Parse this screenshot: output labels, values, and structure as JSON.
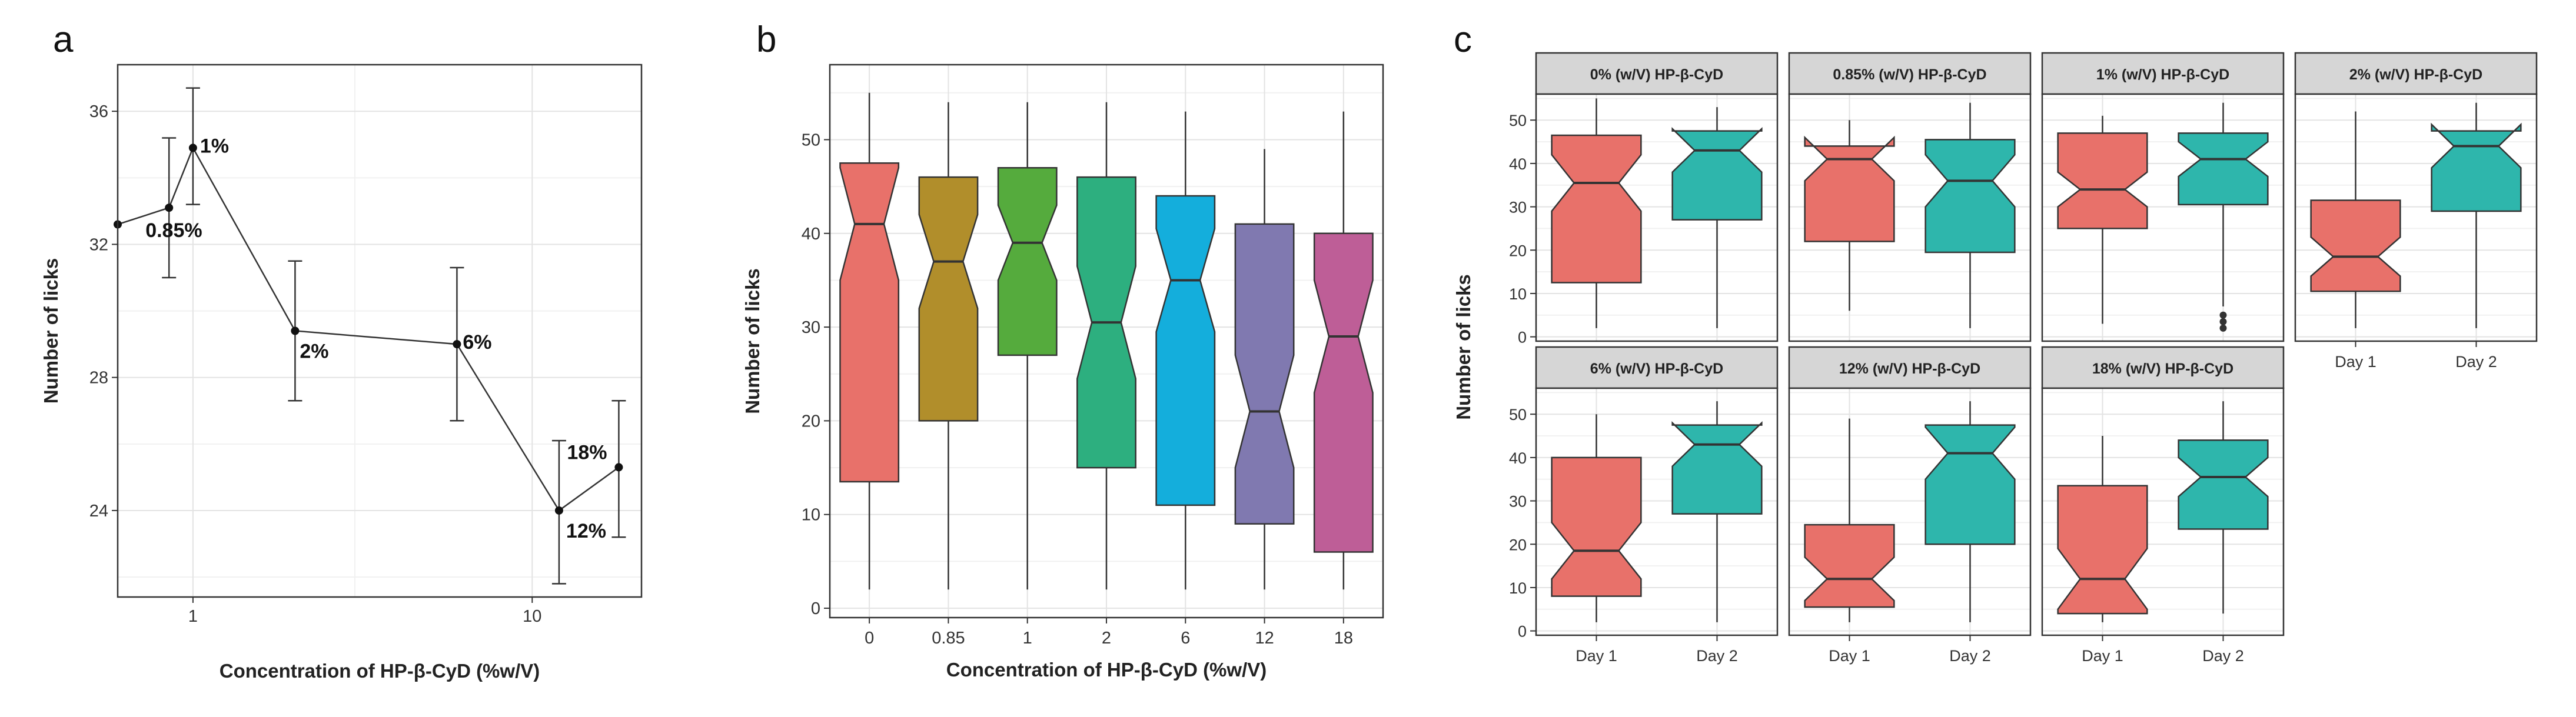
{
  "panels": [
    {
      "id": "a",
      "label": "a",
      "chart_data": {
        "type": "line",
        "xscale": "log",
        "xlabel": "Concentration of HP-β-CyD (%w/V)",
        "ylabel": "Number of licks",
        "xlim": [
          0.6,
          21
        ],
        "ylim": [
          21.4,
          37.4
        ],
        "xticks": [
          1,
          10
        ],
        "xtick_labels": [
          "1",
          "10"
        ],
        "yticks": [
          24,
          28,
          32,
          36
        ],
        "ytick_labels": [
          "24",
          "28",
          "32",
          "36"
        ],
        "points": [
          {
            "x": 0.6,
            "y": 32.6,
            "lo": null,
            "hi": null,
            "label": ""
          },
          {
            "x": 0.85,
            "y": 33.1,
            "lo": 31.0,
            "hi": 35.2,
            "label": "0.85%"
          },
          {
            "x": 1,
            "y": 34.9,
            "lo": 33.2,
            "hi": 36.7,
            "label": "1%"
          },
          {
            "x": 2,
            "y": 29.4,
            "lo": 27.3,
            "hi": 31.5,
            "label": "2%"
          },
          {
            "x": 6,
            "y": 29.0,
            "lo": 26.7,
            "hi": 31.3,
            "label": "6%"
          },
          {
            "x": 12,
            "y": 24.0,
            "lo": 21.8,
            "hi": 26.1,
            "label": "12%"
          },
          {
            "x": 18,
            "y": 25.3,
            "lo": 23.2,
            "hi": 27.3,
            "label": "18%"
          }
        ]
      }
    },
    {
      "id": "b",
      "label": "b",
      "chart_data": {
        "type": "boxplot",
        "notched": true,
        "xlabel": "Concentration of HP-β-CyD (%w/V)",
        "ylabel": "Number of licks",
        "ylim": [
          -1,
          58
        ],
        "yticks": [
          0,
          10,
          20,
          30,
          40,
          50
        ],
        "ytick_labels": [
          "0",
          "10",
          "20",
          "30",
          "40",
          "50"
        ],
        "categories": [
          "0",
          "0.85",
          "1",
          "2",
          "6",
          "12",
          "18"
        ],
        "boxes": [
          {
            "cat": "0",
            "min": 2,
            "q1": 13.5,
            "median": 41,
            "q3": 47.5,
            "max": 55,
            "notch_lo": 35,
            "notch_hi": 47,
            "color": "#E8716A"
          },
          {
            "cat": "0.85",
            "min": 2,
            "q1": 20,
            "median": 37,
            "q3": 46,
            "max": 54,
            "notch_lo": 32,
            "notch_hi": 42,
            "color": "#B18E2B"
          },
          {
            "cat": "1",
            "min": 2,
            "q1": 27,
            "median": 39,
            "q3": 47,
            "max": 54,
            "notch_lo": 35,
            "notch_hi": 43,
            "color": "#55AB3D"
          },
          {
            "cat": "2",
            "min": 2,
            "q1": 15,
            "median": 30.5,
            "q3": 46,
            "max": 54,
            "notch_lo": 24.5,
            "notch_hi": 36.5,
            "color": "#2DAF7F"
          },
          {
            "cat": "6",
            "min": 2,
            "q1": 11,
            "median": 35,
            "q3": 44,
            "max": 53,
            "notch_lo": 29.5,
            "notch_hi": 40.5,
            "color": "#14AEDC"
          },
          {
            "cat": "12",
            "min": 2,
            "q1": 9,
            "median": 21,
            "q3": 41,
            "max": 49,
            "notch_lo": 15,
            "notch_hi": 27,
            "color": "#8079B0"
          },
          {
            "cat": "18",
            "min": 2,
            "q1": 6,
            "median": 29,
            "q3": 40,
            "max": 53,
            "notch_lo": 23,
            "notch_hi": 35,
            "color": "#BE5E97"
          }
        ]
      }
    },
    {
      "id": "c",
      "label": "c",
      "ylabel": "Number of licks",
      "xlabels": [
        "Day 1",
        "Day 2"
      ],
      "day_colors": [
        "#E8716A",
        "#2EB6AC"
      ],
      "ylim": [
        -1,
        56
      ],
      "yticks": [
        0,
        10,
        20,
        30,
        40,
        50
      ],
      "ytick_labels": [
        "0",
        "10",
        "20",
        "30",
        "40",
        "50"
      ],
      "chart_data": [
        {
          "type": "boxplot",
          "facet": "0% (w/V) HP-β-CyD",
          "boxes": [
            {
              "day": "Day 1",
              "min": 2,
              "q1": 12.5,
              "median": 35.5,
              "q3": 46.5,
              "max": 55,
              "notch_lo": 29,
              "notch_hi": 42
            },
            {
              "day": "Day 2",
              "min": 2,
              "q1": 27,
              "median": 43,
              "q3": 47.5,
              "max": 53,
              "notch_lo": 38,
              "notch_hi": 48
            }
          ]
        },
        {
          "type": "boxplot",
          "facet": "0.85% (w/V) HP-β-CyD",
          "boxes": [
            {
              "day": "Day 1",
              "min": 6,
              "q1": 22,
              "median": 41,
              "q3": 44,
              "max": 50,
              "notch_lo": 36,
              "notch_hi": 46
            },
            {
              "day": "Day 2",
              "min": 2,
              "q1": 19.5,
              "median": 36,
              "q3": 45.5,
              "max": 54,
              "notch_lo": 30,
              "notch_hi": 42
            }
          ]
        },
        {
          "type": "boxplot",
          "facet": "1% (w/V) HP-β-CyD",
          "boxes": [
            {
              "day": "Day 1",
              "min": 3,
              "q1": 25,
              "median": 34,
              "q3": 47,
              "max": 51,
              "notch_lo": 30,
              "notch_hi": 38
            },
            {
              "day": "Day 2",
              "min": 7,
              "q1": 30.5,
              "median": 41,
              "q3": 47,
              "max": 54,
              "notch_lo": 37,
              "notch_hi": 45,
              "outliers": [
                5,
                3.5,
                2
              ]
            }
          ]
        },
        {
          "type": "boxplot",
          "facet": "2% (w/V) HP-β-CyD",
          "boxes": [
            {
              "day": "Day 1",
              "min": 2,
              "q1": 10.5,
              "median": 18.5,
              "q3": 31.5,
              "max": 52,
              "notch_lo": 14,
              "notch_hi": 23
            },
            {
              "day": "Day 2",
              "min": 2,
              "q1": 29,
              "median": 44,
              "q3": 47.5,
              "max": 54,
              "notch_lo": 39,
              "notch_hi": 49
            }
          ]
        },
        {
          "type": "boxplot",
          "facet": "6% (w/V) HP-β-CyD",
          "boxes": [
            {
              "day": "Day 1",
              "min": 2,
              "q1": 8,
              "median": 18.5,
              "q3": 40,
              "max": 50,
              "notch_lo": 12,
              "notch_hi": 25
            },
            {
              "day": "Day 2",
              "min": 2,
              "q1": 27,
              "median": 43,
              "q3": 47.5,
              "max": 53,
              "notch_lo": 38,
              "notch_hi": 48
            }
          ]
        },
        {
          "type": "boxplot",
          "facet": "12% (w/V) HP-β-CyD",
          "boxes": [
            {
              "day": "Day 1",
              "min": 2,
              "q1": 5.5,
              "median": 12,
              "q3": 24.5,
              "max": 49,
              "notch_lo": 7,
              "notch_hi": 17
            },
            {
              "day": "Day 2",
              "min": 2,
              "q1": 20,
              "median": 41,
              "q3": 47.5,
              "max": 53,
              "notch_lo": 35,
              "notch_hi": 47
            }
          ]
        },
        {
          "type": "boxplot",
          "facet": "18% (w/V) HP-β-CyD",
          "boxes": [
            {
              "day": "Day 1",
              "min": 2,
              "q1": 4,
              "median": 12,
              "q3": 33.5,
              "max": 45,
              "notch_lo": 5,
              "notch_hi": 19
            },
            {
              "day": "Day 2",
              "min": 4,
              "q1": 23.5,
              "median": 35.5,
              "q3": 44,
              "max": 53,
              "notch_lo": 31,
              "notch_hi": 40
            }
          ]
        }
      ]
    }
  ]
}
